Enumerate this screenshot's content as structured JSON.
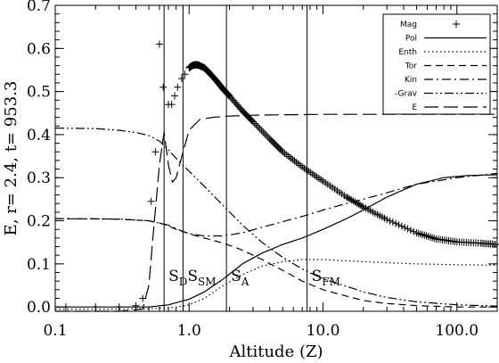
{
  "chart_data": {
    "type": "line",
    "xlabel": "Altitude (Z)",
    "ylabel": "E, r= 2.4, t= 953.3",
    "xscale": "log",
    "xlim": [
      0.1,
      200
    ],
    "ylim": [
      -0.01,
      0.7
    ],
    "grid": false,
    "legend_placement": "top-right",
    "x_ticks": [
      {
        "value": 0.1,
        "label": "0.1"
      },
      {
        "value": 1.0,
        "label": "1.0"
      },
      {
        "value": 10.0,
        "label": "10.0"
      },
      {
        "value": 100.0,
        "label": "100.0"
      }
    ],
    "y_ticks": [
      {
        "value": 0.0,
        "label": "0.0"
      },
      {
        "value": 0.1,
        "label": "0.1"
      },
      {
        "value": 0.2,
        "label": "0.2"
      },
      {
        "value": 0.3,
        "label": "0.3"
      },
      {
        "value": 0.4,
        "label": "0.4"
      },
      {
        "value": 0.5,
        "label": "0.5"
      },
      {
        "value": 0.6,
        "label": "0.6"
      },
      {
        "value": 0.7,
        "label": "0.7"
      }
    ],
    "markers": [
      {
        "x": 0.65,
        "main": "S",
        "sub": "D"
      },
      {
        "x": 0.9,
        "main": "S",
        "sub": "SM"
      },
      {
        "x": 1.9,
        "main": "S",
        "sub": "A"
      },
      {
        "x": 7.6,
        "main": "S",
        "sub": "FM"
      }
    ],
    "series": [
      {
        "name": "Mag",
        "style": "plus",
        "x": [
          0.12,
          0.2,
          0.3,
          0.4,
          0.45,
          0.52,
          0.56,
          0.6,
          0.64,
          0.7,
          0.74,
          0.78,
          0.82,
          0.88,
          0.93,
          1.0,
          1.05,
          1.1,
          1.15,
          1.2,
          1.3,
          1.4,
          1.6,
          1.8,
          2.0,
          2.5,
          3.0,
          4.0,
          5.0,
          7.0,
          10.0,
          15.0,
          20.0,
          30.0,
          50.0,
          70.0,
          100.0,
          150.0,
          200.0
        ],
        "y": [
          0.0,
          0.0,
          0.0,
          0.003,
          0.02,
          0.245,
          0.36,
          0.61,
          0.51,
          0.47,
          0.47,
          0.49,
          0.51,
          0.53,
          0.54,
          0.555,
          0.56,
          0.562,
          0.562,
          0.56,
          0.555,
          0.545,
          0.525,
          0.505,
          0.49,
          0.455,
          0.43,
          0.39,
          0.36,
          0.325,
          0.292,
          0.255,
          0.232,
          0.203,
          0.172,
          0.158,
          0.151,
          0.148,
          0.145
        ]
      },
      {
        "name": "Pol",
        "style": "solid",
        "x": [
          0.1,
          0.3,
          0.5,
          0.7,
          1.0,
          1.3,
          1.8,
          2.5,
          3.5,
          5.0,
          7.0,
          10.0,
          15.0,
          20.0,
          30.0,
          50.0,
          80.0,
          120.0,
          200.0
        ],
        "y": [
          0.0,
          0.0,
          0.0,
          0.005,
          0.018,
          0.035,
          0.065,
          0.1,
          0.125,
          0.145,
          0.16,
          0.18,
          0.205,
          0.225,
          0.255,
          0.285,
          0.3,
          0.305,
          0.307
        ]
      },
      {
        "name": "Enth",
        "style": "dotted",
        "x": [
          0.1,
          0.3,
          0.5,
          0.7,
          0.8,
          0.9,
          1.0,
          1.3,
          1.8,
          2.5,
          3.5,
          5.0,
          7.0,
          10.0,
          20.0,
          50.0,
          100.0,
          200.0
        ],
        "y": [
          -0.005,
          -0.005,
          -0.004,
          -0.002,
          0.0,
          0.002,
          0.005,
          0.02,
          0.05,
          0.075,
          0.095,
          0.105,
          0.11,
          0.11,
          0.105,
          0.1,
          0.098,
          0.097
        ]
      },
      {
        "name": "Tor",
        "style": "dashed",
        "x": [
          0.1,
          0.3,
          0.5,
          0.6,
          0.7,
          0.8,
          0.9,
          1.0,
          1.3,
          1.8,
          2.5,
          3.5,
          5.0,
          7.0,
          10.0,
          15.0,
          20.0,
          30.0,
          50.0,
          100.0,
          200.0
        ],
        "y": [
          0.205,
          0.204,
          0.2,
          0.195,
          0.188,
          0.18,
          0.175,
          0.17,
          0.16,
          0.148,
          0.132,
          0.11,
          0.085,
          0.06,
          0.04,
          0.025,
          0.015,
          0.008,
          0.003,
          0.0,
          0.0
        ]
      },
      {
        "name": "Kin",
        "style": "dash-dot",
        "x": [
          0.1,
          0.3,
          0.5,
          0.7,
          0.9,
          1.0,
          1.3,
          1.8,
          2.5,
          3.5,
          5.0,
          7.0,
          10.0,
          15.0,
          20.0,
          30.0,
          50.0,
          100.0,
          200.0
        ],
        "y": [
          0.205,
          0.204,
          0.2,
          0.19,
          0.175,
          0.17,
          0.165,
          0.165,
          0.172,
          0.185,
          0.198,
          0.21,
          0.225,
          0.24,
          0.25,
          0.265,
          0.285,
          0.3,
          0.31
        ]
      },
      {
        "name": "-Grav",
        "style": "dash-dot-dot",
        "x": [
          0.1,
          0.2,
          0.3,
          0.4,
          0.5,
          0.6,
          0.7,
          0.8,
          1.0,
          1.3,
          1.8,
          2.5,
          3.5,
          5.0,
          7.0,
          10.0,
          15.0,
          20.0,
          30.0,
          50.0,
          100.0,
          200.0
        ],
        "y": [
          0.415,
          0.414,
          0.41,
          0.405,
          0.398,
          0.385,
          0.365,
          0.345,
          0.315,
          0.28,
          0.235,
          0.19,
          0.15,
          0.115,
          0.088,
          0.065,
          0.048,
          0.035,
          0.022,
          0.012,
          0.005,
          0.002
        ]
      },
      {
        "name": "E",
        "style": "long-dash",
        "x": [
          0.1,
          0.3,
          0.45,
          0.5,
          0.55,
          0.6,
          0.65,
          0.7,
          0.75,
          0.8,
          0.9,
          1.0,
          1.2,
          1.5,
          2.0,
          3.0,
          5.0,
          10.0,
          20.0,
          50.0,
          100.0,
          200.0
        ],
        "y": [
          -0.01,
          -0.01,
          -0.005,
          0.05,
          0.2,
          0.33,
          0.405,
          0.33,
          0.29,
          0.3,
          0.36,
          0.41,
          0.435,
          0.44,
          0.443,
          0.445,
          0.446,
          0.447,
          0.447,
          0.447,
          0.447,
          0.447
        ]
      }
    ]
  }
}
